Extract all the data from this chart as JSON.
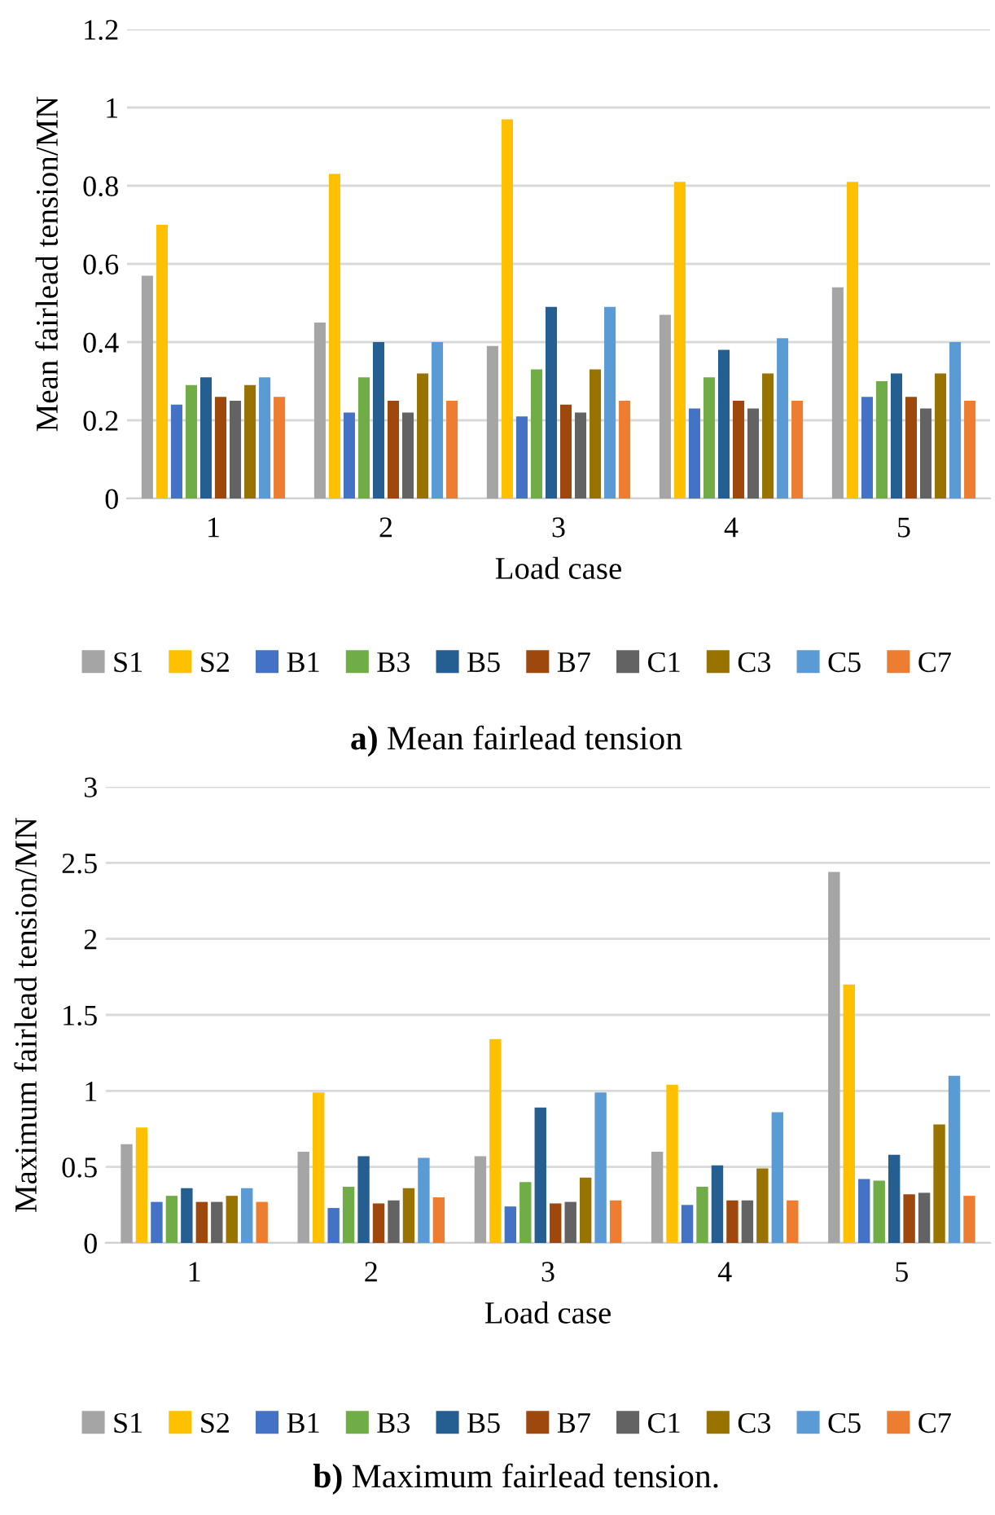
{
  "chart_data": [
    {
      "type": "bar",
      "title": "a) Mean fairlead tension",
      "xlabel": "Load case",
      "ylabel": "Mean fairlead tension/MN",
      "categories": [
        "1",
        "2",
        "3",
        "4",
        "5"
      ],
      "ylim": [
        0,
        1.2
      ],
      "yticks": [
        0,
        0.2,
        0.4,
        0.6,
        0.8,
        1,
        1.2
      ],
      "grid": "y",
      "legend": "bottom",
      "series": [
        {
          "name": "S1",
          "color": "#a5a5a5",
          "values": [
            0.57,
            0.45,
            0.39,
            0.47,
            0.54
          ]
        },
        {
          "name": "S2",
          "color": "#ffc000",
          "values": [
            0.7,
            0.83,
            0.97,
            0.81,
            0.81
          ]
        },
        {
          "name": "B1",
          "color": "#4472c4",
          "values": [
            0.24,
            0.22,
            0.21,
            0.23,
            0.26
          ]
        },
        {
          "name": "B3",
          "color": "#70ad47",
          "values": [
            0.29,
            0.31,
            0.33,
            0.31,
            0.3
          ]
        },
        {
          "name": "B5",
          "color": "#255e91",
          "values": [
            0.31,
            0.4,
            0.49,
            0.38,
            0.32
          ]
        },
        {
          "name": "B7",
          "color": "#9e480e",
          "values": [
            0.26,
            0.25,
            0.24,
            0.25,
            0.26
          ]
        },
        {
          "name": "C1",
          "color": "#636363",
          "values": [
            0.25,
            0.22,
            0.22,
            0.23,
            0.23
          ]
        },
        {
          "name": "C3",
          "color": "#997300",
          "values": [
            0.29,
            0.32,
            0.33,
            0.32,
            0.32
          ]
        },
        {
          "name": "C5",
          "color": "#5b9bd5",
          "values": [
            0.31,
            0.4,
            0.49,
            0.41,
            0.4
          ]
        },
        {
          "name": "C7",
          "color": "#ed7d31",
          "values": [
            0.26,
            0.25,
            0.25,
            0.25,
            0.25
          ]
        }
      ]
    },
    {
      "type": "bar",
      "title": "b) Maximum fairlead tension.",
      "xlabel": "Load case",
      "ylabel": "Maximum fairlead tension/MN",
      "categories": [
        "1",
        "2",
        "3",
        "4",
        "5"
      ],
      "ylim": [
        0,
        3
      ],
      "yticks": [
        0,
        0.5,
        1,
        1.5,
        2,
        2.5,
        3
      ],
      "grid": "y",
      "legend": "bottom",
      "series": [
        {
          "name": "S1",
          "color": "#a5a5a5",
          "values": [
            0.65,
            0.6,
            0.57,
            0.6,
            2.44
          ]
        },
        {
          "name": "S2",
          "color": "#ffc000",
          "values": [
            0.76,
            0.99,
            1.34,
            1.04,
            1.7
          ]
        },
        {
          "name": "B1",
          "color": "#4472c4",
          "values": [
            0.27,
            0.23,
            0.24,
            0.25,
            0.42
          ]
        },
        {
          "name": "B3",
          "color": "#70ad47",
          "values": [
            0.31,
            0.37,
            0.4,
            0.37,
            0.41
          ]
        },
        {
          "name": "B5",
          "color": "#255e91",
          "values": [
            0.36,
            0.57,
            0.89,
            0.51,
            0.58
          ]
        },
        {
          "name": "B7",
          "color": "#9e480e",
          "values": [
            0.27,
            0.26,
            0.26,
            0.28,
            0.32
          ]
        },
        {
          "name": "C1",
          "color": "#636363",
          "values": [
            0.27,
            0.28,
            0.27,
            0.28,
            0.33
          ]
        },
        {
          "name": "C3",
          "color": "#997300",
          "values": [
            0.31,
            0.36,
            0.43,
            0.49,
            0.78
          ]
        },
        {
          "name": "C5",
          "color": "#5b9bd5",
          "values": [
            0.36,
            0.56,
            0.99,
            0.86,
            1.1
          ]
        },
        {
          "name": "C7",
          "color": "#ed7d31",
          "values": [
            0.27,
            0.3,
            0.28,
            0.28,
            0.31
          ]
        }
      ]
    }
  ]
}
